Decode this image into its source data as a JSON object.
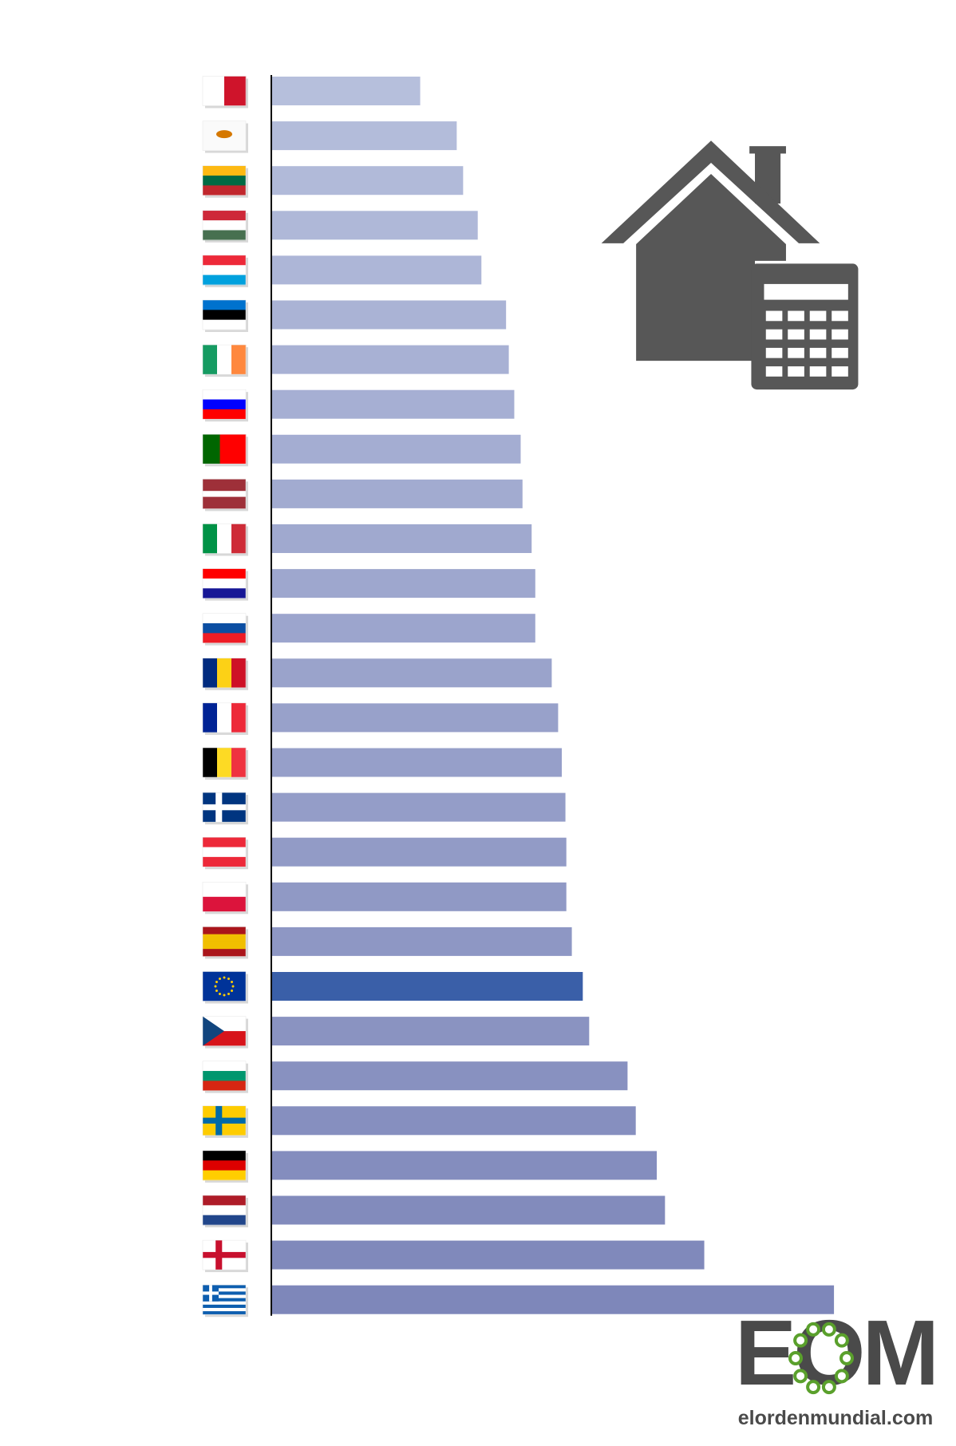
{
  "chart_data": {
    "type": "bar",
    "orientation": "horizontal",
    "categories": [
      null,
      null,
      null,
      null,
      null,
      null,
      null,
      null,
      null,
      null,
      null,
      null,
      null,
      null,
      null,
      null,
      null,
      null,
      null,
      null,
      null,
      null,
      null,
      null,
      null,
      null,
      null,
      null
    ],
    "values": [
      163,
      203,
      210,
      226,
      230,
      257,
      260,
      266,
      273,
      275,
      285,
      289,
      289,
      307,
      314,
      318,
      322,
      323,
      323,
      329,
      341,
      348,
      390,
      399,
      422,
      431,
      474,
      616
    ],
    "colors": [
      "#b6bfdc",
      "#b3bcda",
      "#b1bad9",
      "#afb8d8",
      "#adb6d7",
      "#aab3d5",
      "#a8b1d4",
      "#a6afd3",
      "#a4add2",
      "#a2abd0",
      "#a0a9cf",
      "#9ea7ce",
      "#9ca5cd",
      "#9aa3cb",
      "#98a1ca",
      "#969fc9",
      "#949dc8",
      "#929bc6",
      "#9099c5",
      "#8e97c4",
      "#3a5fa8",
      "#8a93c1",
      "#8891c0",
      "#868fbf",
      "#848dbe",
      "#828bbc",
      "#8089bb",
      "#7e87ba"
    ],
    "xlim": [
      0,
      650
    ]
  },
  "logo": {
    "mark": "EOM",
    "site": "elordenmundial.com"
  }
}
